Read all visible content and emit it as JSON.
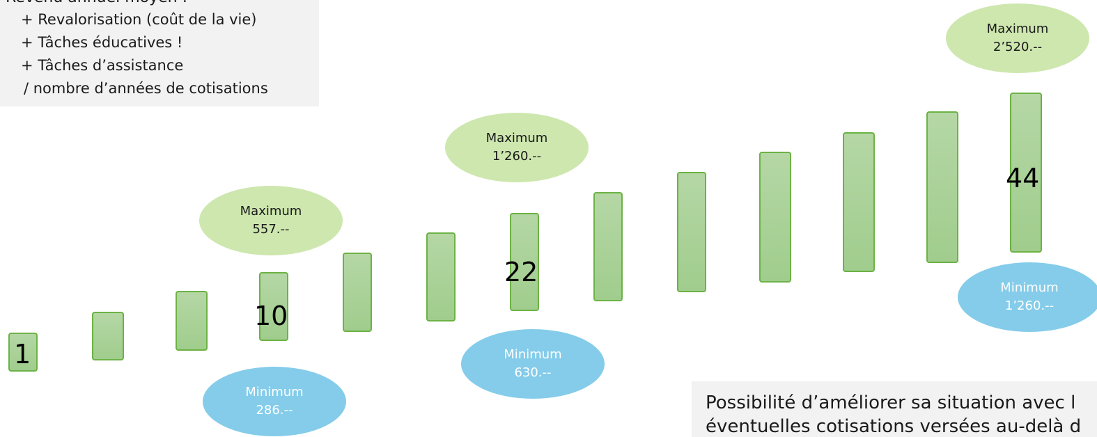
{
  "info_box": {
    "title": "Revenu annuel moyen :",
    "lines": [
      "+ Revalorisation (coût de la vie)",
      "+ Tâches éducatives !",
      "+ Tâches d’assistance",
      "/  nombre d’années de cotisations"
    ]
  },
  "bar_labels": {
    "first": "1",
    "tenth": "10",
    "twentysecond": "22",
    "last": "44"
  },
  "bubbles": {
    "max_1": {
      "title": "Maximum",
      "value": "557.--"
    },
    "min_1": {
      "title": "Minimum",
      "value": "286.--"
    },
    "max_2": {
      "title": "Maximum",
      "value": "1’260.--"
    },
    "min_2": {
      "title": "Minimum",
      "value": "630.--"
    },
    "max_3": {
      "title": "Maximum",
      "value": "2’520.--"
    },
    "min_3": {
      "title": "Minimum",
      "value": "1’260.--"
    }
  },
  "note": {
    "line1": "Possibilité d’améliorer sa situation avec l",
    "line2": "éventuelles cotisations versées au-delà d"
  },
  "colors": {
    "bar_fill": "#a8d197",
    "bar_border": "#6cb245",
    "max_bubble": "#cde7ae",
    "min_bubble": "#84ccea",
    "box_background": "#f2f2f2"
  }
}
